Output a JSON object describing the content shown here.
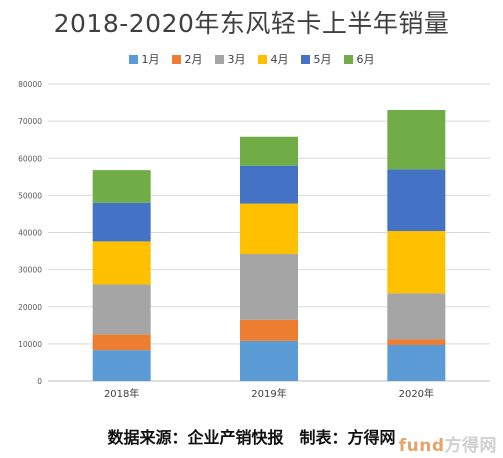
{
  "chart_data": {
    "type": "bar",
    "stacked": true,
    "title": "2018-2020年东风轻卡上半年销量",
    "categories": [
      "2018年",
      "2019年",
      "2020年"
    ],
    "series": [
      {
        "name": "1月",
        "color": "#5b9bd5",
        "values": [
          8300,
          10800,
          9700
        ]
      },
      {
        "name": "2月",
        "color": "#ed7d31",
        "values": [
          4200,
          5700,
          1500
        ]
      },
      {
        "name": "3月",
        "color": "#a5a5a5",
        "values": [
          13500,
          17700,
          12400
        ]
      },
      {
        "name": "4月",
        "color": "#ffc000",
        "values": [
          11600,
          13600,
          16800
        ]
      },
      {
        "name": "5月",
        "color": "#4472c4",
        "values": [
          10400,
          10200,
          16600
        ]
      },
      {
        "name": "6月",
        "color": "#70ad47",
        "values": [
          8800,
          7800,
          16000
        ]
      }
    ],
    "yticks": [
      "0",
      "10000",
      "20000",
      "30000",
      "40000",
      "50000",
      "60000",
      "70000",
      "80000"
    ],
    "ylim": [
      0,
      80000
    ],
    "grid": true,
    "legend": "top-center",
    "source_note": "数据来源：企业产销快报　制表：方得网",
    "watermark": {
      "part1": "fund",
      "part2": "方得网"
    }
  }
}
